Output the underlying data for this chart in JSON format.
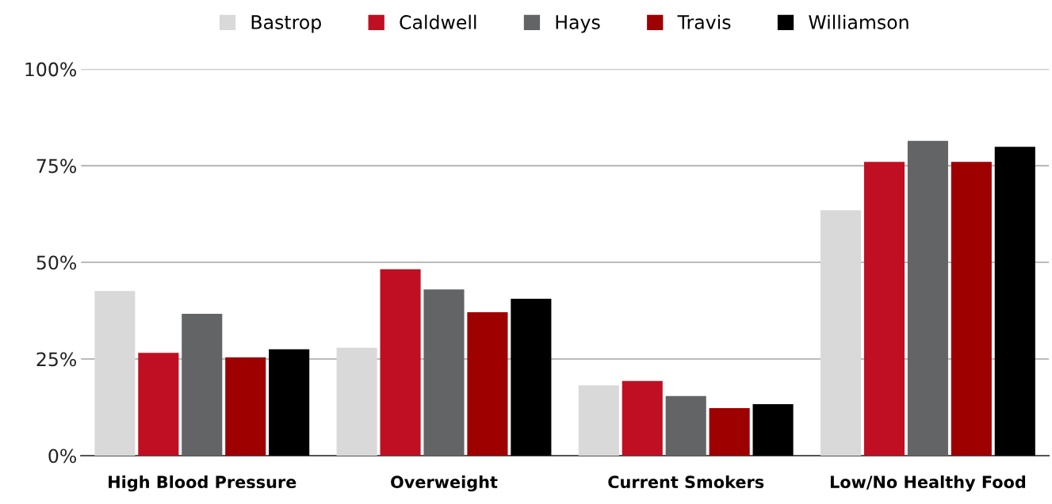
{
  "chart_data": {
    "type": "bar",
    "categories": [
      "High Blood Pressure",
      "Overweight",
      "Current Smokers",
      "Low/No Healthy Food"
    ],
    "series": [
      {
        "name": "Bastrop",
        "color": "#d9d9d9",
        "values": [
          42.6,
          27.9,
          18.2,
          63.5
        ]
      },
      {
        "name": "Caldwell",
        "color": "#c00f23",
        "values": [
          26.6,
          48.2,
          19.3,
          76.0
        ]
      },
      {
        "name": "Hays",
        "color": "#636466",
        "values": [
          36.7,
          43.0,
          15.4,
          81.4
        ]
      },
      {
        "name": "Travis",
        "color": "#9e0000",
        "values": [
          25.4,
          37.1,
          12.3,
          76.0
        ]
      },
      {
        "name": "Williamson",
        "color": "#000000",
        "values": [
          27.5,
          40.6,
          13.3,
          79.9
        ]
      }
    ],
    "ylim": [
      0,
      100
    ],
    "yticks": [
      {
        "value": 0,
        "label": "0%"
      },
      {
        "value": 25,
        "label": "25%"
      },
      {
        "value": 50,
        "label": "50%"
      },
      {
        "value": 75,
        "label": "75%"
      },
      {
        "value": 100,
        "label": "100%"
      }
    ],
    "grid": "y",
    "legend": "top"
  }
}
